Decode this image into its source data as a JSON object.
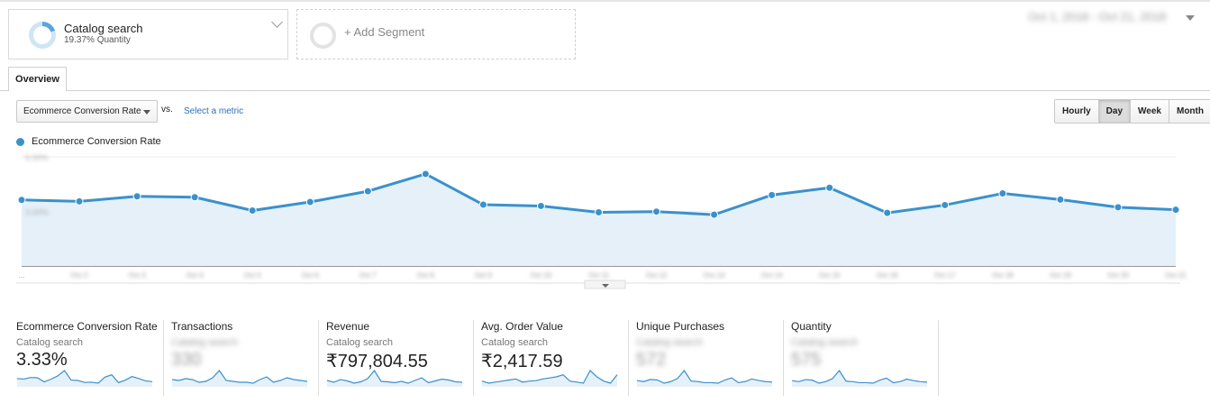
{
  "segment": {
    "name": "Catalog search",
    "detail": "19.37% Quantity",
    "add_label": "+ Add Segment"
  },
  "date_range": "Oct 1, 2018 - Oct 21, 2018",
  "tabs": [
    {
      "label": "Overview"
    }
  ],
  "metric_controls": {
    "primary_metric": "Ecommerce Conversion Rate",
    "vs_label": "vs.",
    "select_metric_label": "Select a metric"
  },
  "time_buttons": [
    {
      "label": "Hourly",
      "active": false
    },
    {
      "label": "Day",
      "active": true
    },
    {
      "label": "Week",
      "active": false
    },
    {
      "label": "Month",
      "active": false
    }
  ],
  "legend": {
    "label": "Ecommerce Conversion Rate"
  },
  "chart_data": {
    "type": "area",
    "series": [
      {
        "name": "Ecommerce Conversion Rate",
        "color": "#3a91cc",
        "values": [
          3.63,
          3.55,
          3.83,
          3.78,
          3.05,
          3.52,
          4.11,
          5.06,
          3.37,
          3.3,
          2.95,
          2.99,
          2.82,
          3.9,
          4.3,
          2.92,
          3.35,
          3.99,
          3.65,
          3.23,
          3.09
        ]
      }
    ],
    "ylim": [
      0,
      6
    ],
    "y_ticks_blurred": [
      "6.00%",
      "3.00%"
    ],
    "x_labels_blurred": [
      "...",
      "Oct 2",
      "Oct 3",
      "Oct 4",
      "Oct 5",
      "Oct 6",
      "Oct 7",
      "Oct 8",
      "Oct 9",
      "Oct 10",
      "Oct 11",
      "Oct 12",
      "Oct 13",
      "Oct 14",
      "Oct 15",
      "Oct 16",
      "Oct 17",
      "Oct 18",
      "Oct 19",
      "Oct 20",
      "Oct 21"
    ],
    "grid": true,
    "fill_color": "#e5f0f9"
  },
  "scorecards": [
    {
      "title": "Ecommerce Conversion Rate",
      "segment": "Catalog search",
      "value": "3.33%",
      "blurred": false,
      "spark": [
        3.63,
        3.55,
        3.83,
        3.78,
        3.05,
        3.52,
        4.11,
        5.06,
        3.37,
        3.3,
        2.95,
        2.99,
        2.82,
        3.9,
        4.3,
        2.92,
        3.35,
        3.99,
        3.65,
        3.23,
        3.09
      ]
    },
    {
      "title": "Transactions",
      "segment": "Catalog search",
      "value": "330",
      "blurred": true,
      "spark": [
        15,
        14,
        16,
        15,
        12,
        13,
        17,
        25,
        14,
        13,
        12,
        12,
        11,
        15,
        18,
        12,
        14,
        17,
        15,
        14,
        13
      ]
    },
    {
      "title": "Revenue",
      "segment": "Catalog search",
      "value": "₹797,804.55",
      "blurred": false,
      "spark": [
        36,
        32,
        38,
        35,
        30,
        33,
        40,
        58,
        34,
        33,
        31,
        34,
        30,
        36,
        42,
        31,
        35,
        39,
        37,
        33,
        32
      ]
    },
    {
      "title": "Avg. Order Value",
      "segment": "Catalog search",
      "value": "₹2,417.59",
      "blurred": false,
      "spark": [
        2.4,
        2.3,
        2.35,
        2.4,
        2.45,
        2.5,
        2.35,
        2.4,
        2.42,
        2.5,
        2.55,
        2.6,
        2.7,
        2.4,
        2.35,
        2.3,
        2.9,
        2.6,
        2.4,
        2.3,
        2.7
      ]
    },
    {
      "title": "Unique Purchases",
      "segment": "Catalog search",
      "value": "572",
      "blurred": true,
      "spark": [
        26,
        24,
        28,
        27,
        21,
        24,
        30,
        45,
        25,
        24,
        22,
        22,
        21,
        27,
        31,
        22,
        24,
        29,
        26,
        24,
        23
      ]
    },
    {
      "title": "Quantity",
      "segment": "Catalog search",
      "value": "575",
      "blurred": true,
      "spark": [
        26,
        24,
        28,
        27,
        21,
        24,
        30,
        46,
        25,
        24,
        22,
        22,
        21,
        27,
        31,
        22,
        24,
        29,
        26,
        24,
        23
      ]
    }
  ]
}
